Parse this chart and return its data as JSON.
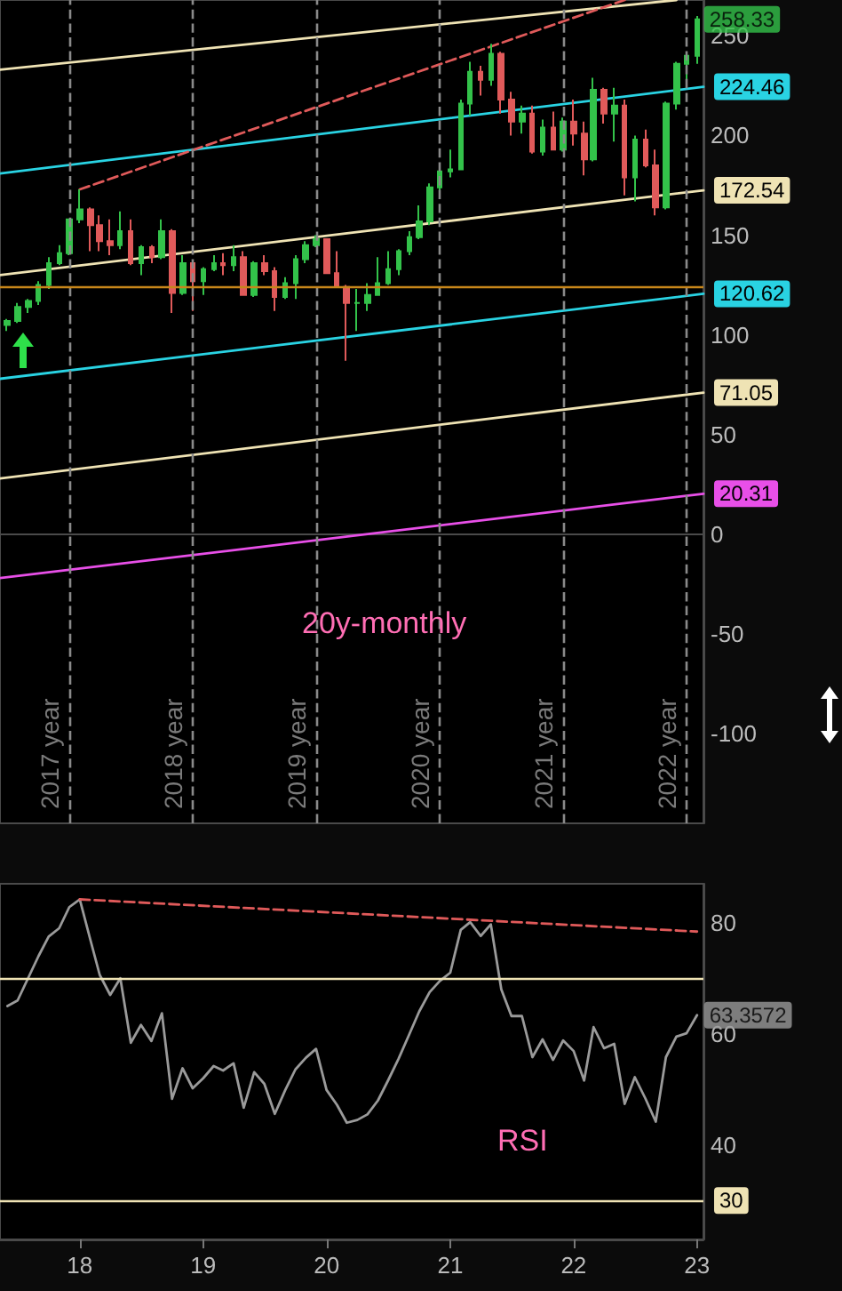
{
  "chart_data": [
    {
      "type": "candlestick",
      "title": "20y-monthly",
      "x": [
        "2017-06",
        "2017-07",
        "2017-08",
        "2017-09",
        "2017-10",
        "2017-11",
        "2017-12",
        "2018-01",
        "2018-02",
        "2018-03",
        "2018-04",
        "2018-05",
        "2018-06",
        "2018-07",
        "2018-08",
        "2018-09",
        "2018-10",
        "2018-11",
        "2018-12",
        "2019-01",
        "2019-02",
        "2019-03",
        "2019-04",
        "2019-05",
        "2019-06",
        "2019-07",
        "2019-08",
        "2019-09",
        "2019-10",
        "2019-11",
        "2019-12",
        "2020-01",
        "2020-02",
        "2020-03",
        "2020-04",
        "2020-05",
        "2020-06",
        "2020-07",
        "2020-08",
        "2020-09",
        "2020-10",
        "2020-11",
        "2020-12",
        "2021-01",
        "2021-02",
        "2021-03",
        "2021-04",
        "2021-05",
        "2021-06",
        "2021-07",
        "2021-08",
        "2021-09",
        "2021-10",
        "2021-11",
        "2021-12",
        "2022-01",
        "2022-02",
        "2022-03",
        "2022-04",
        "2022-05",
        "2022-06",
        "2022-07",
        "2022-08",
        "2022-09",
        "2022-10",
        "2022-11",
        "2022-12",
        "2023-01"
      ],
      "ohlc": [
        [
          105,
          108,
          102,
          107
        ],
        [
          107,
          116,
          106,
          114
        ],
        [
          114,
          118,
          111,
          117
        ],
        [
          117,
          127,
          115,
          125
        ],
        [
          125,
          139,
          123,
          136
        ],
        [
          136,
          145,
          135,
          141
        ],
        [
          141,
          158,
          140,
          158
        ],
        [
          158,
          173,
          156,
          163
        ],
        [
          163,
          164,
          142,
          155
        ],
        [
          155,
          160,
          142,
          147
        ],
        [
          147,
          158,
          140,
          145
        ],
        [
          145,
          162,
          143,
          152
        ],
        [
          152,
          158,
          135,
          136
        ],
        [
          136,
          145,
          130,
          144
        ],
        [
          144,
          145,
          136,
          139
        ],
        [
          139,
          158,
          138,
          152
        ],
        [
          152,
          153,
          111,
          121
        ],
        [
          121,
          140,
          120,
          136
        ],
        [
          136,
          137,
          112,
          127
        ],
        [
          127,
          134,
          120,
          133
        ],
        [
          133,
          140,
          132,
          136
        ],
        [
          136,
          141,
          130,
          135
        ],
        [
          135,
          145,
          132,
          139
        ],
        [
          139,
          142,
          120,
          120
        ],
        [
          120,
          137,
          119,
          136
        ],
        [
          136,
          140,
          130,
          132
        ],
        [
          132,
          134,
          112,
          119
        ],
        [
          119,
          129,
          118,
          126
        ],
        [
          126,
          140,
          118,
          138
        ],
        [
          138,
          147,
          136,
          145
        ],
        [
          145,
          150,
          144,
          148
        ],
        [
          148,
          148,
          131,
          131
        ],
        [
          131,
          142,
          124,
          124
        ],
        [
          124,
          125,
          87,
          116
        ],
        [
          116,
          123,
          102,
          116
        ],
        [
          116,
          126,
          112,
          120
        ],
        [
          120,
          139,
          120,
          126
        ],
        [
          126,
          142,
          125,
          133
        ],
        [
          133,
          143,
          130,
          142
        ],
        [
          142,
          152,
          140,
          149
        ],
        [
          149,
          165,
          148,
          157
        ],
        [
          157,
          176,
          155,
          174
        ],
        [
          174,
          185,
          170,
          182
        ],
        [
          182,
          193,
          179,
          183
        ],
        [
          183,
          218,
          183,
          216
        ],
        [
          216,
          237,
          210,
          232
        ],
        [
          232,
          235,
          220,
          228
        ],
        [
          228,
          246,
          225,
          241
        ],
        [
          241,
          242,
          211,
          218
        ],
        [
          218,
          222,
          200,
          207
        ],
        [
          207,
          215,
          201,
          211
        ],
        [
          211,
          215,
          191,
          192
        ],
        [
          192,
          208,
          190,
          204
        ],
        [
          204,
          212,
          193,
          193
        ],
        [
          193,
          209,
          192,
          207
        ],
        [
          207,
          218,
          195,
          201
        ],
        [
          201,
          207,
          180,
          188
        ],
        [
          188,
          229,
          187,
          223
        ],
        [
          223,
          224,
          206,
          211
        ],
        [
          211,
          224,
          197,
          215
        ],
        [
          215,
          218,
          170,
          179
        ],
        [
          179,
          200,
          167,
          198
        ],
        [
          198,
          203,
          184,
          185
        ],
        [
          185,
          193,
          160,
          164
        ],
        [
          164,
          217,
          163,
          216
        ],
        [
          216,
          237,
          213,
          236
        ],
        [
          236,
          240,
          226,
          240
        ],
        [
          240,
          260,
          236,
          258.33
        ]
      ],
      "series": [
        {
          "type": "line",
          "x": [
            "2017-05-10",
            "2022-11"
          ],
          "values": [
            233,
            268
          ],
          "color": "#efe3b4"
        },
        {
          "type": "line",
          "x": [
            "2017-05-10",
            "2023-01-20"
          ],
          "values": [
            181,
            224.46
          ],
          "color": "#29d3e3",
          "value_labels": [
            null,
            "224.46"
          ]
        },
        {
          "type": "line",
          "x": [
            "2017-05-10",
            "2023-01-20"
          ],
          "values": [
            130,
            172.54
          ],
          "color": "#efe3b4",
          "value_labels": [
            null,
            "172.54"
          ]
        },
        {
          "type": "line",
          "x": [
            "2017-05-10",
            "2023-01-20"
          ],
          "values": [
            78,
            120.62
          ],
          "color": "#29d3e3",
          "value_labels": [
            null,
            "120.62"
          ]
        },
        {
          "type": "line",
          "x": [
            "2017-05-10",
            "2023-01-20"
          ],
          "values": [
            28,
            71.05
          ],
          "color": "#efe3b4",
          "value_labels": [
            null,
            "71.05"
          ]
        },
        {
          "type": "line",
          "x": [
            "2017-05-10",
            "2023-01-20"
          ],
          "values": [
            -22,
            20.31
          ],
          "color": "#e84fe8",
          "value_labels": [
            null,
            "20.31"
          ]
        },
        {
          "type": "line",
          "x": [
            "2018-01",
            "2022-06"
          ],
          "values": [
            173,
            268
          ],
          "color": "#e05a5a",
          "line_style": "dashed"
        }
      ],
      "xlim": [
        "2017-05-10",
        "2023-01-20"
      ],
      "ylim": [
        -145,
        268
      ],
      "yticks": [
        -100,
        -50,
        0,
        50,
        100,
        150,
        200,
        250
      ],
      "tick_labels": "y",
      "ref_lines": [
        {
          "axis": "x",
          "value": "2017-12",
          "label": "2017 year",
          "color": "#8a8a8a",
          "line_style": "dashed"
        },
        {
          "axis": "x",
          "value": "2018-12",
          "label": "2018 year",
          "color": "#8a8a8a",
          "line_style": "dashed"
        },
        {
          "axis": "x",
          "value": "2019-12",
          "label": "2019 year",
          "color": "#8a8a8a",
          "line_style": "dashed"
        },
        {
          "axis": "x",
          "value": "2020-12",
          "label": "2020 year",
          "color": "#8a8a8a",
          "line_style": "dashed"
        },
        {
          "axis": "x",
          "value": "2021-12",
          "label": "2021 year",
          "color": "#8a8a8a",
          "line_style": "dashed"
        },
        {
          "axis": "x",
          "value": "2022-12",
          "label": "2022 year",
          "color": "#8a8a8a",
          "line_style": "dashed"
        },
        {
          "axis": "y",
          "value": 124,
          "color": "#c8861a"
        }
      ],
      "annotations": [
        {
          "text": "258.33",
          "x": "2023-01",
          "y": 258.33
        }
      ]
    },
    {
      "type": "line",
      "title": "RSI",
      "x": [
        "2017-06",
        "2017-07",
        "2017-08",
        "2017-09",
        "2017-10",
        "2017-11",
        "2017-12",
        "2018-01",
        "2018-02",
        "2018-03",
        "2018-04",
        "2018-05",
        "2018-06",
        "2018-07",
        "2018-08",
        "2018-09",
        "2018-10",
        "2018-11",
        "2018-12",
        "2019-01",
        "2019-02",
        "2019-03",
        "2019-04",
        "2019-05",
        "2019-06",
        "2019-07",
        "2019-08",
        "2019-09",
        "2019-10",
        "2019-11",
        "2019-12",
        "2020-01",
        "2020-02",
        "2020-03",
        "2020-04",
        "2020-05",
        "2020-06",
        "2020-07",
        "2020-08",
        "2020-09",
        "2020-10",
        "2020-11",
        "2020-12",
        "2021-01",
        "2021-02",
        "2021-03",
        "2021-04",
        "2021-05",
        "2021-06",
        "2021-07",
        "2021-08",
        "2021-09",
        "2021-10",
        "2021-11",
        "2021-12",
        "2022-01",
        "2022-02",
        "2022-03",
        "2022-04",
        "2022-05",
        "2022-06",
        "2022-07",
        "2022-08",
        "2022-09",
        "2022-10",
        "2022-11",
        "2022-12",
        "2023-01"
      ],
      "series": [
        {
          "color": "#9a9a9a",
          "values": [
            65,
            66,
            70,
            74,
            77.5,
            79,
            82.8,
            84.2,
            77,
            70.6,
            67,
            70,
            58.4,
            61.6,
            58.7,
            63.7,
            48.3,
            53.8,
            50.2,
            52,
            54.2,
            53.4,
            54.7,
            46.7,
            53.1,
            51,
            45.6,
            49.9,
            53.6,
            55.7,
            57.3,
            49.9,
            47.2,
            44,
            44.5,
            45.5,
            48,
            51.6,
            55.5,
            59.8,
            64,
            67.5,
            69.5,
            71,
            78.7,
            80.1,
            77.6,
            79.7,
            68,
            63.2,
            63.2,
            55.8,
            59,
            55.3,
            58.8,
            56.9,
            51.6,
            61.2,
            57.4,
            58.2,
            47.4,
            52.2,
            48.4,
            44.2,
            55.8,
            59.5,
            60.1,
            63.3572
          ]
        },
        {
          "x": [
            "2018-01",
            "2023-01"
          ],
          "values": [
            84.2,
            78.4
          ],
          "color": "#e05a5a",
          "line_style": "dashed"
        }
      ],
      "xlim": [
        "2017-05-10",
        "2023-01-20"
      ],
      "xticks": [
        {
          "value": "2018-01",
          "label": "18"
        },
        {
          "value": "2019-01",
          "label": "19"
        },
        {
          "value": "2020-01",
          "label": "20"
        },
        {
          "value": "2021-01",
          "label": "21"
        },
        {
          "value": "2022-01",
          "label": "22"
        },
        {
          "value": "2023-01",
          "label": "23"
        }
      ],
      "ylim": [
        23,
        87
      ],
      "yticks": [
        40,
        60,
        80
      ],
      "ref_lines": [
        {
          "axis": "y",
          "value": 70,
          "color": "#efe3b4"
        },
        {
          "axis": "y",
          "value": 30,
          "label": "30",
          "color": "#efe3b4"
        }
      ],
      "annotations": [
        {
          "text": "63.3572",
          "x": "2023-01",
          "y": 63.3572
        }
      ]
    }
  ]
}
